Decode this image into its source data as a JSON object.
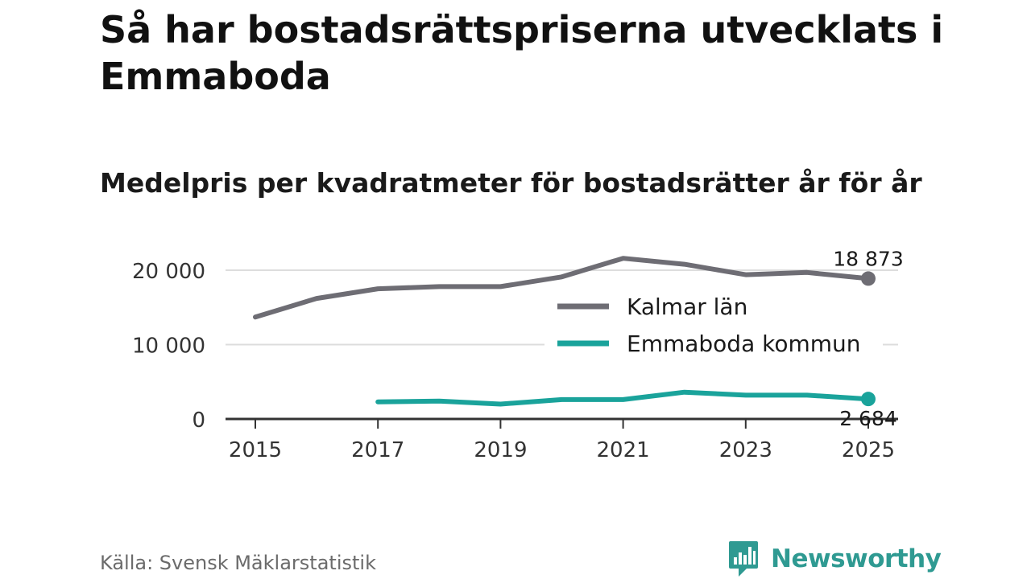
{
  "header": {
    "title": "Så har bostadsrättspriserna utvecklats i Emmaboda",
    "subtitle": "Medelpris per kvadratmeter för bostadsrätter år för år"
  },
  "footer": {
    "source": "Källa: Svensk Mäklarstatistik",
    "brand": "Newsworthy"
  },
  "colors": {
    "kalmar": "#6e6d74",
    "emmaboda": "#1aa39b",
    "grid": "#dddddd",
    "axis": "#333333",
    "brand": "#2f9a92"
  },
  "chart_data": {
    "type": "line",
    "title": "Medelpris per kvadratmeter för bostadsrätter år för år",
    "xlabel": "",
    "ylabel": "",
    "xlim": [
      2015,
      2025
    ],
    "ylim": [
      0,
      20000
    ],
    "x_ticks": [
      2015,
      2017,
      2019,
      2021,
      2023,
      2025
    ],
    "x_tick_labels": [
      "2015",
      "2017",
      "2019",
      "2021",
      "2023",
      "2025"
    ],
    "y_ticks": [
      0,
      10000,
      20000
    ],
    "y_tick_labels": [
      "0",
      "10 000",
      "20 000"
    ],
    "grid": true,
    "legend_position": "center-right",
    "series": [
      {
        "name": "Kalmar län",
        "color": "#6e6d74",
        "x": [
          2015,
          2016,
          2017,
          2018,
          2019,
          2020,
          2021,
          2022,
          2023,
          2024,
          2025
        ],
        "values": [
          13700,
          16200,
          17500,
          17800,
          17800,
          19100,
          21600,
          20800,
          19400,
          19700,
          18873
        ],
        "end_label": "18 873"
      },
      {
        "name": "Emmaboda kommun",
        "color": "#1aa39b",
        "x": [
          2017,
          2018,
          2019,
          2020,
          2021,
          2022,
          2023,
          2024,
          2025
        ],
        "values": [
          2300,
          2400,
          2000,
          2600,
          2600,
          3600,
          3200,
          3200,
          2684
        ],
        "end_label": "2 684"
      }
    ]
  }
}
